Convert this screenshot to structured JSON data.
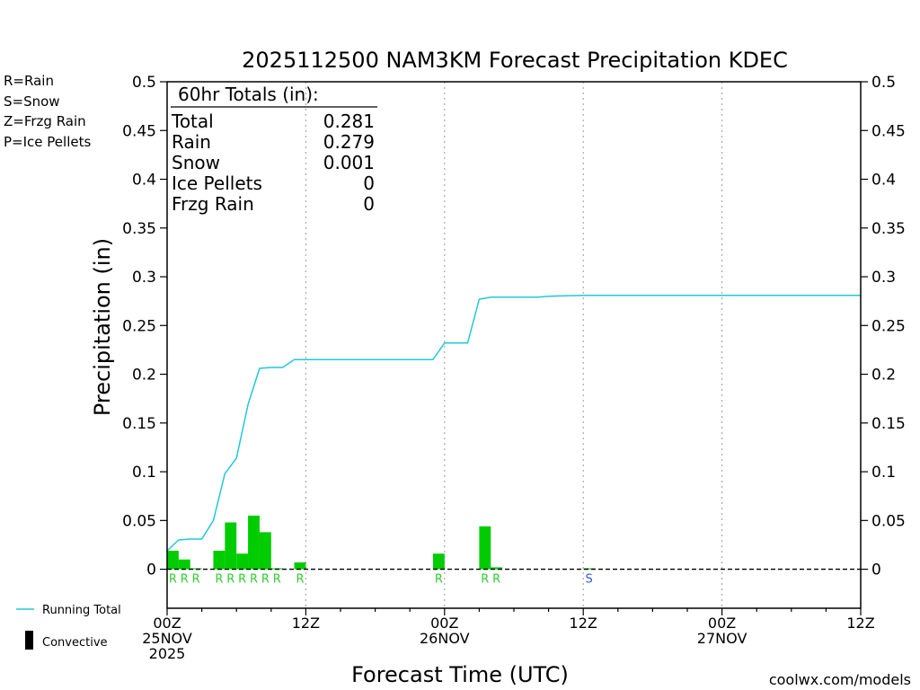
{
  "colors": {
    "rain": "#33cc33",
    "snow": "#3355ee",
    "frzg": "#f08c3c",
    "ice": "#e0307e",
    "running_total": "#22c8d8",
    "bar": "#00cc00",
    "watermark": "#dd2222"
  },
  "legend_left": {
    "rain": "R=Rain",
    "snow": "S=Snow",
    "frzg": "Z=Frzg Rain",
    "ice": "P=Ice Pellets"
  },
  "legend_bottom": {
    "running_total": "Running Total",
    "convective": "Convective"
  },
  "watermark": "coolwx.com/models",
  "totals_box": {
    "title": "60hr Totals (in):",
    "rows": [
      {
        "label": "Total",
        "value": "0.281"
      },
      {
        "label": "Rain",
        "value": "0.279"
      },
      {
        "label": "Snow",
        "value": "0.001"
      },
      {
        "label": "Ice Pellets",
        "value": "0"
      },
      {
        "label": "Frzg Rain",
        "value": "0"
      }
    ]
  },
  "chart_data": {
    "type": "bar",
    "title": "2025112500 NAM3KM Forecast Precipitation KDEC",
    "xlabel": "Forecast Time (UTC)",
    "ylabel": "Precipitation (in)",
    "xlim_hours": [
      0,
      60
    ],
    "ylim": [
      -0.04,
      0.5
    ],
    "yticks": [
      0,
      0.05,
      0.1,
      0.15,
      0.2,
      0.25,
      0.3,
      0.35,
      0.4,
      0.45,
      0.5
    ],
    "ytick_labels": [
      "0",
      "0.05",
      "0.1",
      "0.15",
      "0.2",
      "0.25",
      "0.3",
      "0.35",
      "0.4",
      "0.45",
      "0.5"
    ],
    "xticks": [
      {
        "hour": 0,
        "lines": [
          "00Z",
          "25NOV",
          "2025"
        ]
      },
      {
        "hour": 12,
        "lines": [
          "12Z"
        ]
      },
      {
        "hour": 24,
        "lines": [
          "00Z",
          "26NOV"
        ]
      },
      {
        "hour": 36,
        "lines": [
          "12Z"
        ]
      },
      {
        "hour": 48,
        "lines": [
          "00Z",
          "27NOV"
        ]
      },
      {
        "hour": 60,
        "lines": [
          "12Z"
        ]
      }
    ],
    "bars": [
      {
        "hour": 0,
        "value": 0.019,
        "ptype": "R"
      },
      {
        "hour": 1,
        "value": 0.01,
        "ptype": "R"
      },
      {
        "hour": 2,
        "value": 0.001,
        "ptype": "R"
      },
      {
        "hour": 4,
        "value": 0.019,
        "ptype": "R"
      },
      {
        "hour": 5,
        "value": 0.048,
        "ptype": "R"
      },
      {
        "hour": 6,
        "value": 0.016,
        "ptype": "R"
      },
      {
        "hour": 7,
        "value": 0.055,
        "ptype": "R"
      },
      {
        "hour": 8,
        "value": 0.038,
        "ptype": "R"
      },
      {
        "hour": 9,
        "value": 0.001,
        "ptype": "R"
      },
      {
        "hour": 11,
        "value": 0.007,
        "ptype": "R"
      },
      {
        "hour": 23,
        "value": 0.016,
        "ptype": "R"
      },
      {
        "hour": 27,
        "value": 0.044,
        "ptype": "R"
      },
      {
        "hour": 28,
        "value": 0.002,
        "ptype": "R"
      },
      {
        "hour": 36,
        "value": 0.001,
        "ptype": "S"
      }
    ],
    "running_total": {
      "name": "Running Total",
      "x": [
        0,
        1,
        2,
        3,
        4,
        5,
        6,
        7,
        8,
        9,
        10,
        11,
        12,
        23,
        24,
        26,
        27,
        28,
        32,
        33,
        36,
        60
      ],
      "y": [
        0.019,
        0.03,
        0.031,
        0.031,
        0.05,
        0.098,
        0.114,
        0.169,
        0.206,
        0.207,
        0.207,
        0.215,
        0.215,
        0.215,
        0.232,
        0.232,
        0.277,
        0.279,
        0.279,
        0.28,
        0.281,
        0.281
      ]
    }
  }
}
